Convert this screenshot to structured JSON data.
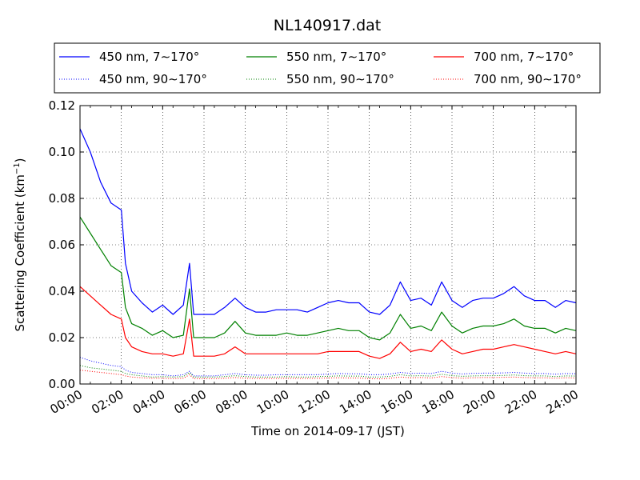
{
  "chart_data": {
    "type": "line",
    "title": "NL140917.dat",
    "xlabel": "Time on 2014-09-17 (JST)",
    "ylabel": "Scattering Coefficient (km",
    "ylabel_sup": "−1",
    "ylabel_close": ")",
    "xlim": [
      "00:00",
      "24:00"
    ],
    "ylim": [
      0,
      0.12
    ],
    "grid": true,
    "legend_position": "top",
    "x_ticks": [
      "00:00",
      "02:00",
      "04:00",
      "06:00",
      "08:00",
      "10:00",
      "12:00",
      "14:00",
      "16:00",
      "18:00",
      "20:00",
      "22:00",
      "24:00"
    ],
    "y_ticks": [
      "0.00",
      "0.02",
      "0.04",
      "0.06",
      "0.08",
      "0.10",
      "0.12"
    ],
    "x_hours": [
      0,
      0.5,
      1,
      1.5,
      2,
      2.2,
      2.5,
      3,
      3.5,
      4,
      4.5,
      5,
      5.3,
      5.5,
      6,
      6.5,
      7,
      7.5,
      8,
      8.5,
      9,
      9.5,
      10,
      10.5,
      11,
      11.5,
      12,
      12.5,
      13,
      13.5,
      14,
      14.5,
      15,
      15.5,
      16,
      16.5,
      17,
      17.5,
      18,
      18.5,
      19,
      19.5,
      20,
      20.5,
      21,
      21.5,
      22,
      22.5,
      23,
      23.5,
      24
    ],
    "series": [
      {
        "name": "450 nm, 7∼170°",
        "color": "#0000ff",
        "style": "solid",
        "values": [
          0.11,
          0.1,
          0.087,
          0.078,
          0.075,
          0.052,
          0.04,
          0.035,
          0.031,
          0.034,
          0.03,
          0.034,
          0.052,
          0.03,
          0.03,
          0.03,
          0.033,
          0.037,
          0.033,
          0.031,
          0.031,
          0.032,
          0.032,
          0.032,
          0.031,
          0.033,
          0.035,
          0.036,
          0.035,
          0.035,
          0.031,
          0.03,
          0.034,
          0.044,
          0.036,
          0.037,
          0.034,
          0.044,
          0.036,
          0.033,
          0.036,
          0.037,
          0.037,
          0.039,
          0.042,
          0.038,
          0.036,
          0.036,
          0.033,
          0.036,
          0.035
        ]
      },
      {
        "name": "450 nm, 90∼170°",
        "color": "#0000ff",
        "style": "dotted",
        "values": [
          0.0115,
          0.01,
          0.009,
          0.008,
          0.0075,
          0.006,
          0.005,
          0.0045,
          0.004,
          0.004,
          0.0035,
          0.004,
          0.0055,
          0.0035,
          0.0035,
          0.0035,
          0.004,
          0.0045,
          0.004,
          0.0038,
          0.0038,
          0.004,
          0.004,
          0.004,
          0.004,
          0.004,
          0.0043,
          0.0045,
          0.0044,
          0.0044,
          0.004,
          0.004,
          0.0043,
          0.005,
          0.0046,
          0.0047,
          0.0045,
          0.0055,
          0.0047,
          0.0043,
          0.0046,
          0.0047,
          0.0047,
          0.0048,
          0.005,
          0.0047,
          0.0045,
          0.0045,
          0.0042,
          0.0045,
          0.0044
        ]
      },
      {
        "name": "550 nm, 7∼170°",
        "color": "#008000",
        "style": "solid",
        "values": [
          0.072,
          0.065,
          0.058,
          0.051,
          0.048,
          0.033,
          0.026,
          0.024,
          0.021,
          0.023,
          0.02,
          0.021,
          0.041,
          0.02,
          0.02,
          0.02,
          0.022,
          0.027,
          0.022,
          0.021,
          0.021,
          0.021,
          0.022,
          0.021,
          0.021,
          0.022,
          0.023,
          0.024,
          0.023,
          0.023,
          0.02,
          0.019,
          0.022,
          0.03,
          0.024,
          0.025,
          0.023,
          0.031,
          0.025,
          0.022,
          0.024,
          0.025,
          0.025,
          0.026,
          0.028,
          0.025,
          0.024,
          0.024,
          0.022,
          0.024,
          0.023
        ]
      },
      {
        "name": "550 nm, 90∼170°",
        "color": "#008000",
        "style": "dotted",
        "values": [
          0.008,
          0.007,
          0.0065,
          0.006,
          0.0055,
          0.0045,
          0.004,
          0.0035,
          0.003,
          0.0032,
          0.003,
          0.0032,
          0.005,
          0.003,
          0.003,
          0.003,
          0.0032,
          0.0036,
          0.0032,
          0.003,
          0.003,
          0.003,
          0.0032,
          0.003,
          0.003,
          0.0032,
          0.0033,
          0.0035,
          0.0034,
          0.0034,
          0.003,
          0.003,
          0.0033,
          0.004,
          0.0035,
          0.0036,
          0.0034,
          0.0042,
          0.0036,
          0.0033,
          0.0035,
          0.0036,
          0.0036,
          0.0037,
          0.0039,
          0.0036,
          0.0035,
          0.0035,
          0.0032,
          0.0035,
          0.0034
        ]
      },
      {
        "name": "700 nm, 7∼170°",
        "color": "#ff0000",
        "style": "solid",
        "values": [
          0.042,
          0.038,
          0.034,
          0.03,
          0.028,
          0.02,
          0.016,
          0.014,
          0.013,
          0.013,
          0.012,
          0.013,
          0.028,
          0.012,
          0.012,
          0.012,
          0.013,
          0.016,
          0.013,
          0.013,
          0.013,
          0.013,
          0.013,
          0.013,
          0.013,
          0.013,
          0.014,
          0.014,
          0.014,
          0.014,
          0.012,
          0.011,
          0.013,
          0.018,
          0.014,
          0.015,
          0.014,
          0.019,
          0.015,
          0.013,
          0.014,
          0.015,
          0.015,
          0.016,
          0.017,
          0.016,
          0.015,
          0.014,
          0.013,
          0.014,
          0.013
        ]
      },
      {
        "name": "700 nm, 90∼170°",
        "color": "#ff0000",
        "style": "dotted",
        "values": [
          0.006,
          0.0055,
          0.005,
          0.0045,
          0.004,
          0.0035,
          0.003,
          0.0027,
          0.0025,
          0.0025,
          0.0023,
          0.0025,
          0.004,
          0.0023,
          0.0023,
          0.0023,
          0.0025,
          0.0028,
          0.0025,
          0.0024,
          0.0024,
          0.0024,
          0.0025,
          0.0024,
          0.0024,
          0.0025,
          0.0026,
          0.0027,
          0.0026,
          0.0026,
          0.0023,
          0.0022,
          0.0025,
          0.003,
          0.0027,
          0.0028,
          0.0026,
          0.0032,
          0.0028,
          0.0025,
          0.0027,
          0.0028,
          0.0028,
          0.0029,
          0.003,
          0.0028,
          0.0027,
          0.0027,
          0.0025,
          0.0027,
          0.0026
        ]
      }
    ]
  }
}
